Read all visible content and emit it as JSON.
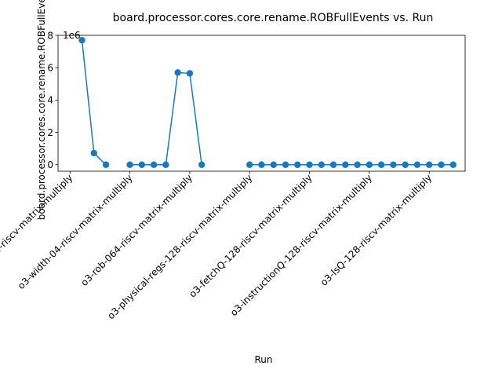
{
  "chart_data": {
    "type": "line",
    "title": "board.processor.cores.core.rename.ROBFullEvents vs. Run",
    "xlabel": "Run",
    "ylabel": "board.processor.cores.core.rename.ROBFullEvents",
    "y_multiplier_label": "1e6",
    "ylim": [
      -0.4,
      8.0
    ],
    "xlim": [
      -1.0,
      33.0
    ],
    "y_ticks": [
      0,
      2,
      4,
      6,
      8
    ],
    "y_tick_labels": [
      "0",
      "2",
      "4",
      "6",
      "8"
    ],
    "x_ticks": [
      0,
      5,
      10,
      15,
      20,
      25,
      30
    ],
    "x_tick_labels": [
      "inorder-riscv-matrix-multiply",
      "o3-width-04-riscv-matrix-multiply",
      "o3-rob-064-riscv-matrix-multiply",
      "o3-physical-regs-128-riscv-matrix-multiply",
      "o3-fetchQ-128-riscv-matrix-multiply",
      "o3-instructionQ-128-riscv-matrix-multiply",
      "o3-lsQ-128-riscv-matrix-multiply"
    ],
    "series": [
      {
        "color": "#1f77b4",
        "segments": [
          {
            "x": [
              1,
              2,
              3
            ],
            "y": [
              7.7,
              0.72,
              0.0
            ]
          },
          {
            "x": [
              5,
              6,
              7,
              8,
              9,
              10,
              11
            ],
            "y": [
              0.0,
              0.0,
              0.0,
              0.0,
              5.7,
              5.65,
              0.0
            ]
          },
          {
            "x": [
              15,
              16,
              17,
              18,
              19,
              20,
              21,
              22,
              23,
              24,
              25,
              26,
              27,
              28,
              29,
              30,
              31,
              32
            ],
            "y": [
              0,
              0,
              0,
              0,
              0,
              0,
              0,
              0,
              0,
              0,
              0,
              0,
              0,
              0,
              0,
              0,
              0,
              0
            ]
          }
        ]
      }
    ]
  }
}
